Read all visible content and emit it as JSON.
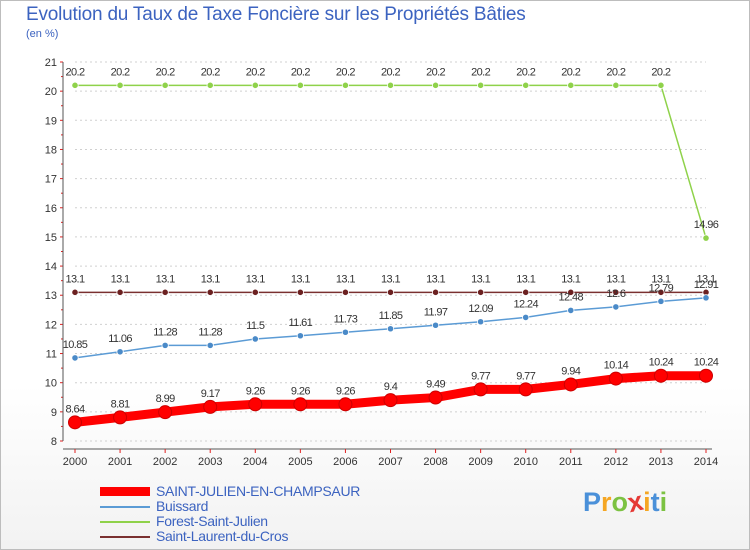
{
  "header": {
    "title": "Evolution du Taux de Taxe Foncière sur les Propriétés Bâties",
    "unit": "(en %)"
  },
  "chart_data": {
    "type": "line",
    "title": "Evolution du Taux de Taxe Foncière sur les Propriétés Bâties",
    "ylabel": "(en %)",
    "xlabel": "",
    "x": [
      "2000",
      "2001",
      "2002",
      "2003",
      "2004",
      "2005",
      "2006",
      "2007",
      "2008",
      "2009",
      "2010",
      "2011",
      "2012",
      "2013",
      "2014"
    ],
    "ylim": [
      8,
      21
    ],
    "yticks": [
      "8",
      "9",
      "10",
      "11",
      "12",
      "13",
      "14",
      "15",
      "16",
      "17",
      "18",
      "19",
      "20",
      "21"
    ],
    "grid": "horizontal dashed",
    "legend_position": "bottom-left",
    "series": [
      {
        "name": "SAINT-JULIEN-EN-CHAMPSAUR",
        "color": "#ff0000",
        "marker_color": "#ff0000",
        "emphasis": "bold",
        "values": [
          8.64,
          8.81,
          8.99,
          9.17,
          9.26,
          9.26,
          9.26,
          9.4,
          9.49,
          9.77,
          9.77,
          9.94,
          10.14,
          10.24,
          10.24
        ],
        "labels": [
          "8.64",
          "8.81",
          "8.99",
          "9.17",
          "9.26",
          "9.26",
          "9.26",
          "9.4",
          "9.49",
          "9.77",
          "9.77",
          "9.94",
          "10.14",
          "10.24",
          "10.24"
        ]
      },
      {
        "name": "Buissard",
        "color": "#5b9bd5",
        "marker_color": "#4a8ac8",
        "emphasis": "normal",
        "values": [
          10.85,
          11.06,
          11.28,
          11.28,
          11.5,
          11.61,
          11.73,
          11.85,
          11.97,
          12.09,
          12.24,
          12.48,
          12.6,
          12.79,
          12.91
        ],
        "labels": [
          "10.85",
          "11.06",
          "11.28",
          "11.28",
          "11.5",
          "11.61",
          "11.73",
          "11.85",
          "11.97",
          "12.09",
          "12.24",
          "12.48",
          "12.6",
          "12.79",
          "12.91"
        ]
      },
      {
        "name": "Forest-Saint-Julien",
        "color": "#8fd24a",
        "marker_color": "#8fd24a",
        "emphasis": "normal",
        "values": [
          20.2,
          20.2,
          20.2,
          20.2,
          20.2,
          20.2,
          20.2,
          20.2,
          20.2,
          20.2,
          20.2,
          20.2,
          20.2,
          20.2,
          14.96
        ],
        "labels": [
          "20.2",
          "20.2",
          "20.2",
          "20.2",
          "20.2",
          "20.2",
          "20.2",
          "20.2",
          "20.2",
          "20.2",
          "20.2",
          "20.2",
          "20.2",
          "20.2",
          "14.96"
        ]
      },
      {
        "name": "Saint-Laurent-du-Cros",
        "color": "#7a3030",
        "marker_color": "#6b2020",
        "emphasis": "normal",
        "values": [
          13.1,
          13.1,
          13.1,
          13.1,
          13.1,
          13.1,
          13.1,
          13.1,
          13.1,
          13.1,
          13.1,
          13.1,
          13.1,
          13.1,
          13.1
        ],
        "labels": [
          "13.1",
          "13.1",
          "13.1",
          "13.1",
          "13.1",
          "13.1",
          "13.1",
          "13.1",
          "13.1",
          "13.1",
          "13.1",
          "13.1",
          "13.1",
          "13.1",
          "13.1"
        ]
      }
    ]
  },
  "logo": {
    "text": "Proxiti",
    "letters": [
      "P",
      "r",
      "o",
      "x",
      "i",
      "t",
      "i"
    ],
    "colors": [
      "#4a90d9",
      "#f5a623",
      "#7cc242",
      "#e53935",
      "#f5a623",
      "#4a90d9",
      "#7cc242"
    ]
  }
}
